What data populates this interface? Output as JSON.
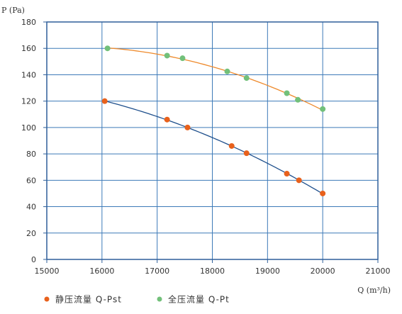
{
  "chart_data": {
    "type": "scatter",
    "ylabel": "P (Pa)",
    "xlabel": "Q (m³/h)",
    "xlim": [
      15000,
      21000
    ],
    "ylim": [
      0,
      180
    ],
    "xticks": [
      15000,
      16000,
      17000,
      18000,
      19000,
      20000,
      21000
    ],
    "yticks": [
      0,
      20,
      40,
      60,
      80,
      100,
      120,
      140,
      160,
      180
    ],
    "grid": true,
    "legend_placement": "bottom-left",
    "colors": {
      "grid": "#3d7ab8",
      "frame": "#2f5f9a"
    },
    "series": [
      {
        "name": "静压流量  Q-Pst",
        "marker_color": "#e8611c",
        "line_color": "#1e4f8c",
        "points": [
          [
            16050,
            120
          ],
          [
            17180,
            106
          ],
          [
            17550,
            100
          ],
          [
            18350,
            86
          ],
          [
            18620,
            80.5
          ],
          [
            19350,
            65
          ],
          [
            19570,
            60
          ],
          [
            20000,
            50
          ]
        ]
      },
      {
        "name": "全压流量  Q-Pt",
        "marker_color": "#72c07a",
        "line_color": "#ee8a2c",
        "points": [
          [
            16100,
            160
          ],
          [
            17180,
            154.5
          ],
          [
            17460,
            152.5
          ],
          [
            18270,
            142.5
          ],
          [
            18620,
            137.5
          ],
          [
            19350,
            126
          ],
          [
            19550,
            121
          ],
          [
            20000,
            114
          ]
        ]
      }
    ]
  }
}
